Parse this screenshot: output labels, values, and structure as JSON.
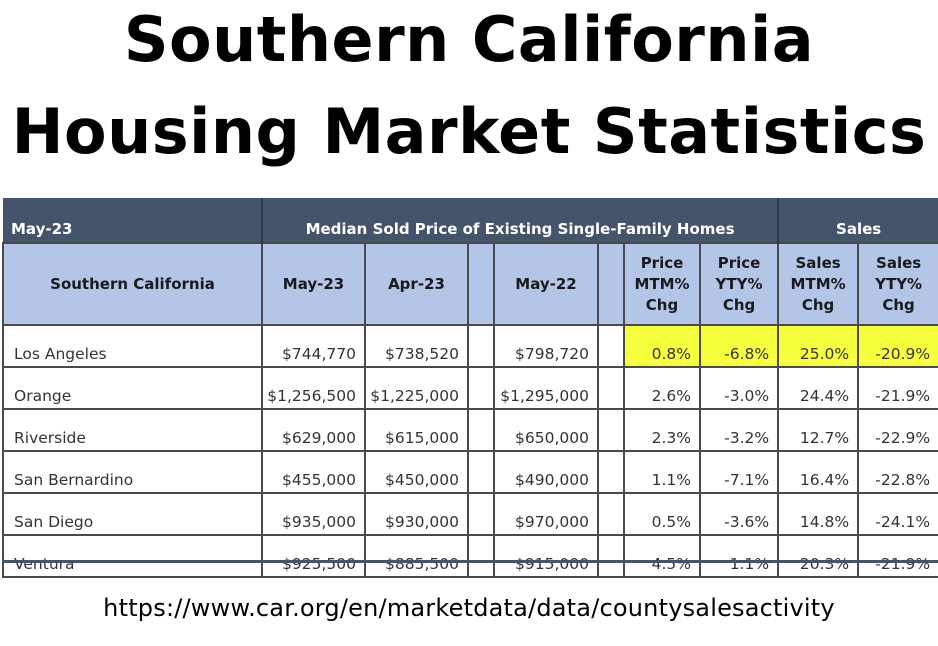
{
  "title_line1": "Southern California",
  "title_line2": "Housing Market Statistics",
  "chart_data": {
    "type": "table",
    "band": {
      "period": "May-23",
      "median_group": "Median Sold Price of Existing Single-Family Homes",
      "sales_group": "Sales"
    },
    "columns": [
      "Southern California",
      "May-23",
      "Apr-23",
      "May-22",
      "Price MTM% Chg",
      "Price YTY% Chg",
      "Sales MTM% Chg",
      "Sales YTY% Chg"
    ],
    "column_header_lines": [
      [
        "Southern California"
      ],
      [
        "May-23"
      ],
      [
        "Apr-23"
      ],
      [
        "May-22"
      ],
      [
        "Price",
        "MTM%",
        "Chg"
      ],
      [
        "Price",
        "YTY%",
        "Chg"
      ],
      [
        "Sales",
        "MTM%",
        "Chg"
      ],
      [
        "Sales",
        "YTY%",
        "Chg"
      ]
    ],
    "rows": [
      {
        "county": "Los Angeles",
        "may23": "$744,770",
        "apr23": "$738,520",
        "may22": "$798,720",
        "price_mtm": "0.8%",
        "price_yty": "-6.8%",
        "sales_mtm": "25.0%",
        "sales_yty": "-20.9%",
        "highlighted": true
      },
      {
        "county": "Orange",
        "may23": "$1,256,500",
        "apr23": "$1,225,000",
        "may22": "$1,295,000",
        "price_mtm": "2.6%",
        "price_yty": "-3.0%",
        "sales_mtm": "24.4%",
        "sales_yty": "-21.9%",
        "highlighted": false
      },
      {
        "county": "Riverside",
        "may23": "$629,000",
        "apr23": "$615,000",
        "may22": "$650,000",
        "price_mtm": "2.3%",
        "price_yty": "-3.2%",
        "sales_mtm": "12.7%",
        "sales_yty": "-22.9%",
        "highlighted": false
      },
      {
        "county": "San Bernardino",
        "may23": "$455,000",
        "apr23": "$450,000",
        "may22": "$490,000",
        "price_mtm": "1.1%",
        "price_yty": "-7.1%",
        "sales_mtm": "16.4%",
        "sales_yty": "-22.8%",
        "highlighted": false
      },
      {
        "county": "San Diego",
        "may23": "$935,000",
        "apr23": "$930,000",
        "may22": "$970,000",
        "price_mtm": "0.5%",
        "price_yty": "-3.6%",
        "sales_mtm": "14.8%",
        "sales_yty": "-24.1%",
        "highlighted": false
      },
      {
        "county": "Ventura",
        "may23": "$925,500",
        "apr23": "$885,500",
        "may22": "$915,000",
        "price_mtm": "4.5%",
        "price_yty": "1.1%",
        "sales_mtm": "20.3%",
        "sales_yty": "-21.9%",
        "highlighted": false
      }
    ]
  },
  "source_url": "https://www.car.org/en/marketdata/data/countysalesactivity",
  "colors": {
    "band_bg": "#44546a",
    "header_bg": "#b4c6e7",
    "highlight": "#f6ff3c"
  }
}
